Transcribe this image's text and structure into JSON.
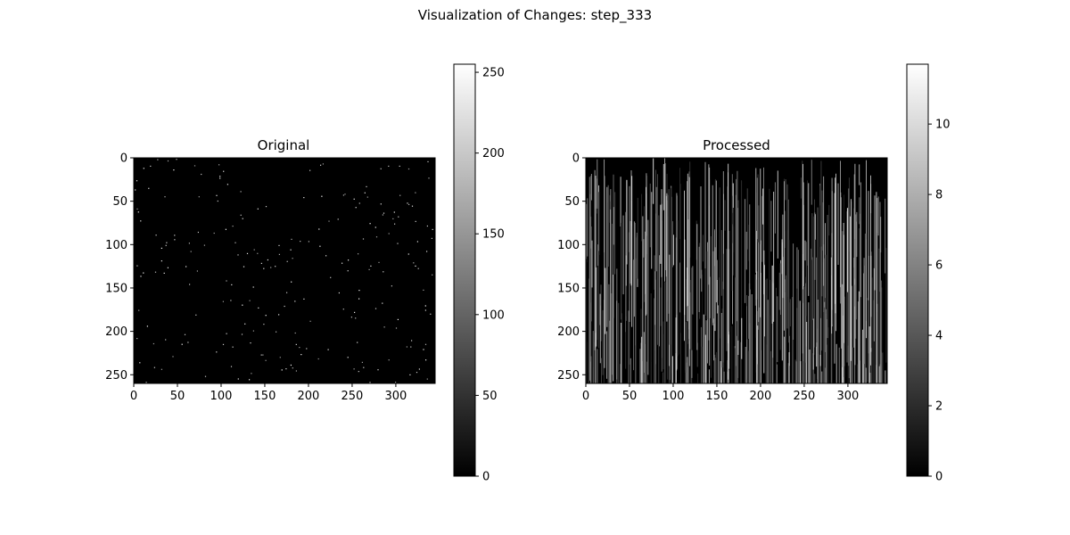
{
  "figure": {
    "suptitle": "Visualization of Changes: step_333",
    "background": "#ffffff"
  },
  "chart_data": [
    {
      "type": "heatmap",
      "title": "Original",
      "colormap": "gray",
      "image_shape": [
        260,
        345
      ],
      "xlim": [
        0,
        345
      ],
      "ylim": [
        260,
        0
      ],
      "x_ticks": [
        0,
        50,
        100,
        150,
        200,
        250,
        300
      ],
      "y_ticks": [
        0,
        50,
        100,
        150,
        200,
        250
      ],
      "colorbar": {
        "min": 0,
        "max": 255,
        "ticks": [
          0,
          50,
          100,
          150,
          200,
          250
        ]
      },
      "description_values": "mostly 0 with sparse isolated bright pixels near 255"
    },
    {
      "type": "heatmap",
      "title": "Processed",
      "colormap": "gray",
      "image_shape": [
        260,
        345
      ],
      "xlim": [
        0,
        345
      ],
      "ylim": [
        260,
        0
      ],
      "x_ticks": [
        0,
        50,
        100,
        150,
        200,
        250,
        300
      ],
      "y_ticks": [
        0,
        50,
        100,
        150,
        200,
        250
      ],
      "colorbar": {
        "min": 0,
        "max": 11.7,
        "ticks": [
          0,
          2,
          4,
          6,
          8,
          10
        ]
      },
      "description_values": "dark background with many thin vertical streaks up to ~11.7"
    }
  ]
}
